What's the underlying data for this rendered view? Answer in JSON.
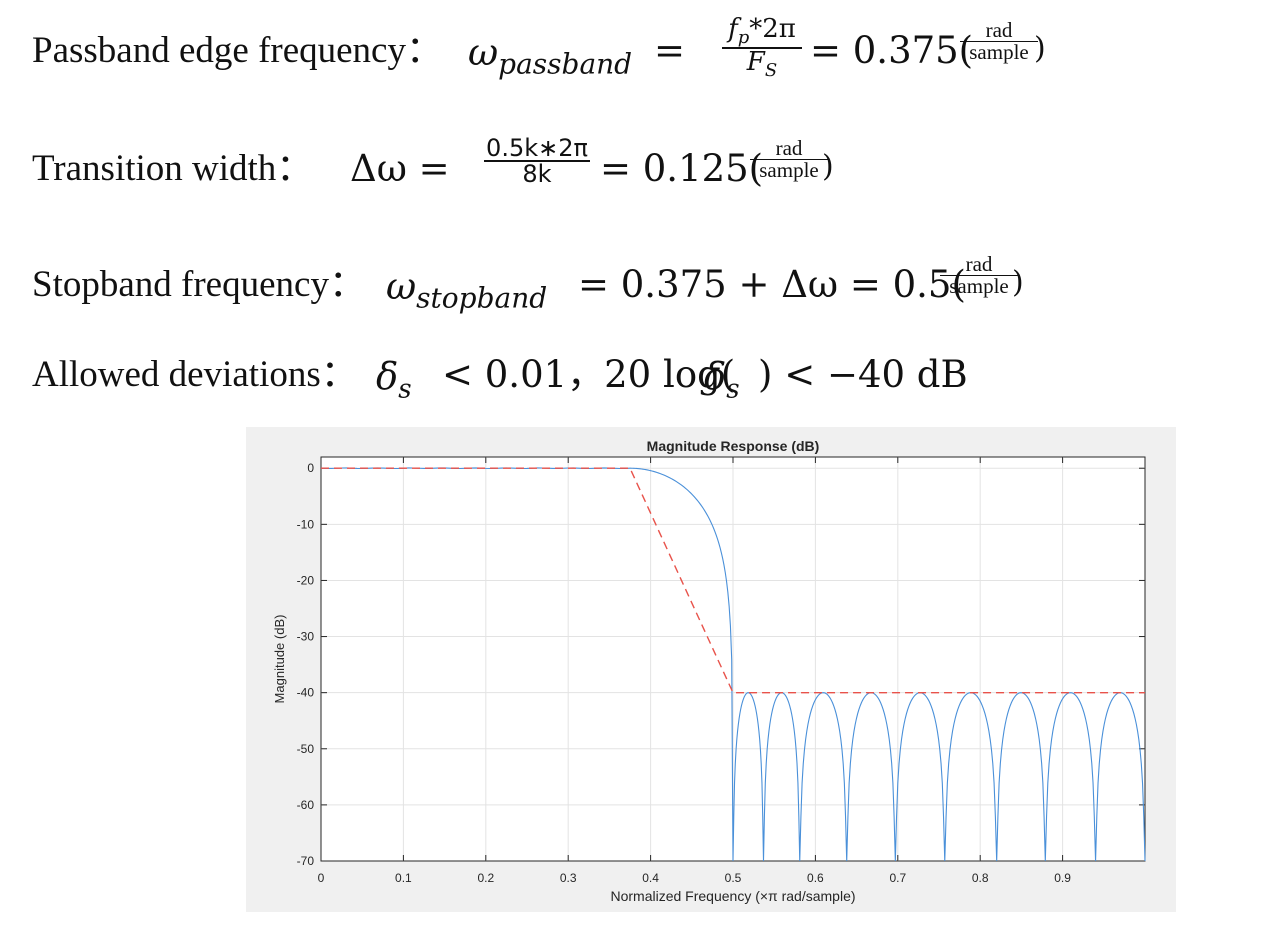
{
  "equations": {
    "passband": {
      "label": "Passband edge frequency：",
      "symbol": "ω",
      "subscript": "passband",
      "eq_sign": "=",
      "num_var": "f",
      "num_var_sub": "p",
      "num_rest": "*2π",
      "den_var": "F",
      "den_var_sub": "S",
      "result": "= 0.375(",
      "unit_num": "rad",
      "unit_den": "sample",
      "close": ")"
    },
    "transition": {
      "label": "Transition width：",
      "lhs": "Δω =",
      "num": "0.5k∗2π",
      "den": "8k",
      "result": "= 0.125(",
      "unit_num": "rad",
      "unit_den": "sample",
      "close": ")"
    },
    "stopband": {
      "label": "Stopband frequency：",
      "symbol": "ω",
      "subscript": "stopband",
      "rhs": "=  0.375 +  Δω = 0.5(",
      "unit_num": "rad",
      "unit_den": "sample",
      "close": ")"
    },
    "deviation": {
      "label": "Allowed deviations：",
      "symbol": "δ",
      "subscript": "s",
      "rhs1": "< 0.01，20 log(",
      "rhs2": ") <  −40 dB"
    }
  },
  "chart_data": {
    "type": "line",
    "title": "Magnitude Response (dB)",
    "xlabel": "Normalized  Frequency  (×π  rad/sample)",
    "ylabel": "Magnitude (dB)",
    "xlim": [
      0,
      1
    ],
    "ylim": [
      -70,
      2
    ],
    "xticks": [
      0,
      0.1,
      0.2,
      0.3,
      0.4,
      0.5,
      0.6,
      0.7,
      0.8,
      0.9
    ],
    "xtick_labels": [
      "0",
      "0.1",
      "0.2",
      "0.3",
      "0.4",
      "0.5",
      "0.6",
      "0.7",
      "0.8",
      "0.9"
    ],
    "yticks": [
      0,
      -10,
      -20,
      -30,
      -40,
      -50,
      -60,
      -70
    ],
    "ytick_labels": [
      "0",
      "-10",
      "-20",
      "-30",
      "-40",
      "-50",
      "-60",
      "-70"
    ],
    "grid": true,
    "series": [
      {
        "style": "solid",
        "color": "#4a90d9",
        "passband_edge": 0.375,
        "stopband_edge": 0.5,
        "stopband_level": -40,
        "stopband_nulls": [
          0.5,
          0.537,
          0.581,
          0.638,
          0.697,
          0.757,
          0.82,
          0.879,
          0.94,
          1.0
        ]
      },
      {
        "style": "dashed",
        "color": "#e8524a",
        "x": [
          0,
          0.375,
          0.5,
          1.0
        ],
        "y": [
          0,
          0,
          -40,
          -40
        ]
      }
    ]
  }
}
